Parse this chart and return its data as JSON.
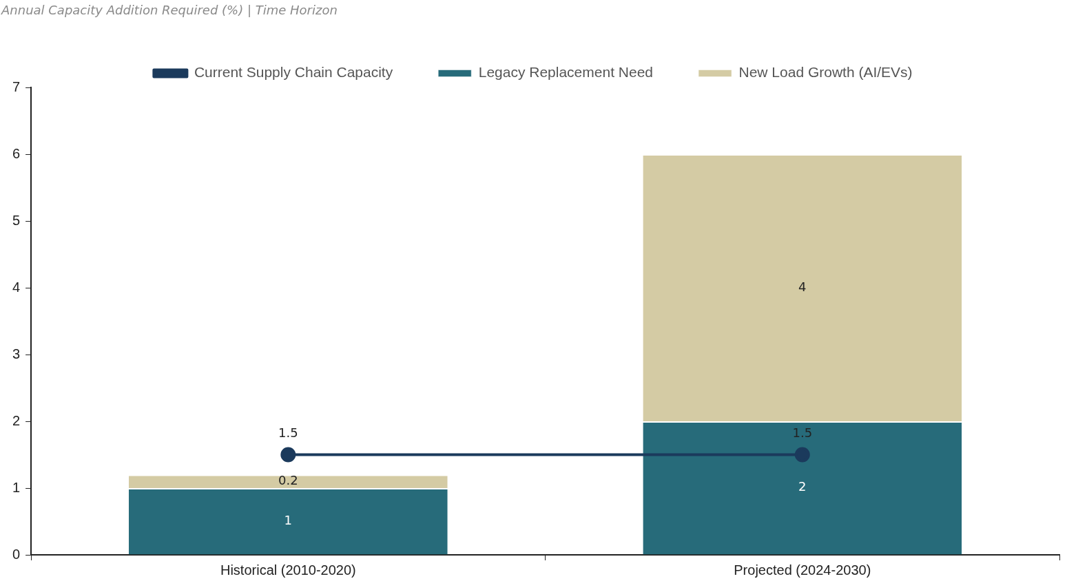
{
  "chart_data": {
    "type": "bar",
    "title": "Annual Capacity Addition Required (%)  |  Time Horizon",
    "categories": [
      "Historical (2010-2020)",
      "Projected (2024-2030)"
    ],
    "stacked": true,
    "series": [
      {
        "name": "Legacy Replacement Need",
        "color": "#276b7a",
        "values": [
          1,
          2
        ]
      },
      {
        "name": "New Load Growth (AI/EVs)",
        "color": "#d4cba4",
        "values": [
          0.2,
          4
        ]
      },
      {
        "name": "Current Supply Chain Capacity",
        "type": "line",
        "color": "#1b3a5c",
        "values": [
          1.5,
          1.5
        ]
      }
    ],
    "ylim": [
      0,
      7
    ],
    "yticks": [
      0,
      1,
      2,
      3,
      4,
      5,
      6,
      7
    ],
    "grid": false,
    "legend": "top",
    "marker": "circle",
    "line_style": "solid",
    "data_labels": true
  }
}
